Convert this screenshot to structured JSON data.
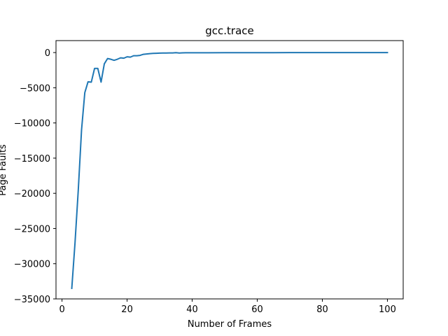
{
  "chart_data": {
    "type": "line",
    "title": "gcc.trace",
    "xlabel": "Number of Frames",
    "ylabel": "Page Faults",
    "xlim": [
      -1.85,
      104.85
    ],
    "ylim": [
      -35000,
      1700
    ],
    "xticks": [
      0,
      20,
      40,
      60,
      80,
      100
    ],
    "yticks": [
      0,
      -5000,
      -10000,
      -15000,
      -20000,
      -25000,
      -30000,
      -35000
    ],
    "grid": false,
    "series": [
      {
        "color": "#1f77b4",
        "x": [
          3,
          4,
          5,
          6,
          7,
          8,
          9,
          10,
          11,
          12,
          13,
          14,
          15,
          16,
          17,
          18,
          19,
          20,
          21,
          22,
          23,
          24,
          25,
          26,
          27,
          28,
          29,
          30,
          31,
          32,
          33,
          34,
          35,
          36,
          37,
          38,
          39,
          40,
          45,
          50,
          55,
          60,
          65,
          70,
          75,
          80,
          85,
          90,
          95,
          100
        ],
        "y": [
          -33500,
          -27000,
          -19500,
          -11000,
          -5700,
          -4150,
          -4200,
          -2250,
          -2250,
          -4200,
          -1600,
          -850,
          -950,
          -1100,
          -950,
          -750,
          -800,
          -600,
          -650,
          -450,
          -450,
          -400,
          -250,
          -200,
          -150,
          -120,
          -100,
          -80,
          -70,
          -60,
          -55,
          -50,
          -20,
          -60,
          -40,
          -30,
          -30,
          -30,
          -25,
          -20,
          -15,
          -10,
          -10,
          -8,
          -6,
          -5,
          -4,
          -3,
          -2,
          -2
        ]
      }
    ]
  }
}
